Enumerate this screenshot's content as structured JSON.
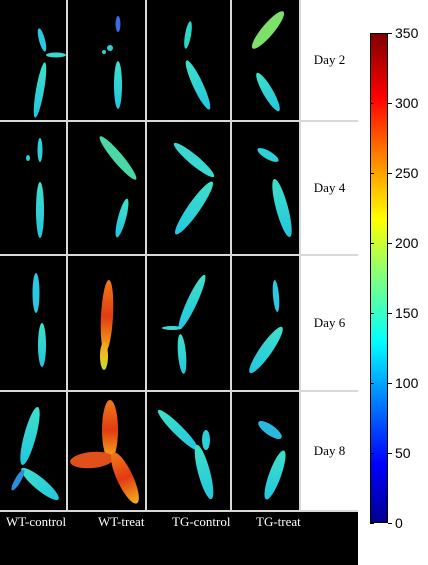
{
  "rows": [
    {
      "label": "Day 2"
    },
    {
      "label": "Day 4"
    },
    {
      "label": "Day 6"
    },
    {
      "label": "Day 8"
    }
  ],
  "columns": [
    {
      "label": "WT-control"
    },
    {
      "label": "WT-treat"
    },
    {
      "label": "TG-control"
    },
    {
      "label": "TG-treat"
    }
  ],
  "colorbar": {
    "min": 0,
    "max": 350,
    "ticks": [
      "0",
      "50",
      "100",
      "150",
      "200",
      "250",
      "300",
      "350"
    ],
    "colormap": "jet"
  }
}
